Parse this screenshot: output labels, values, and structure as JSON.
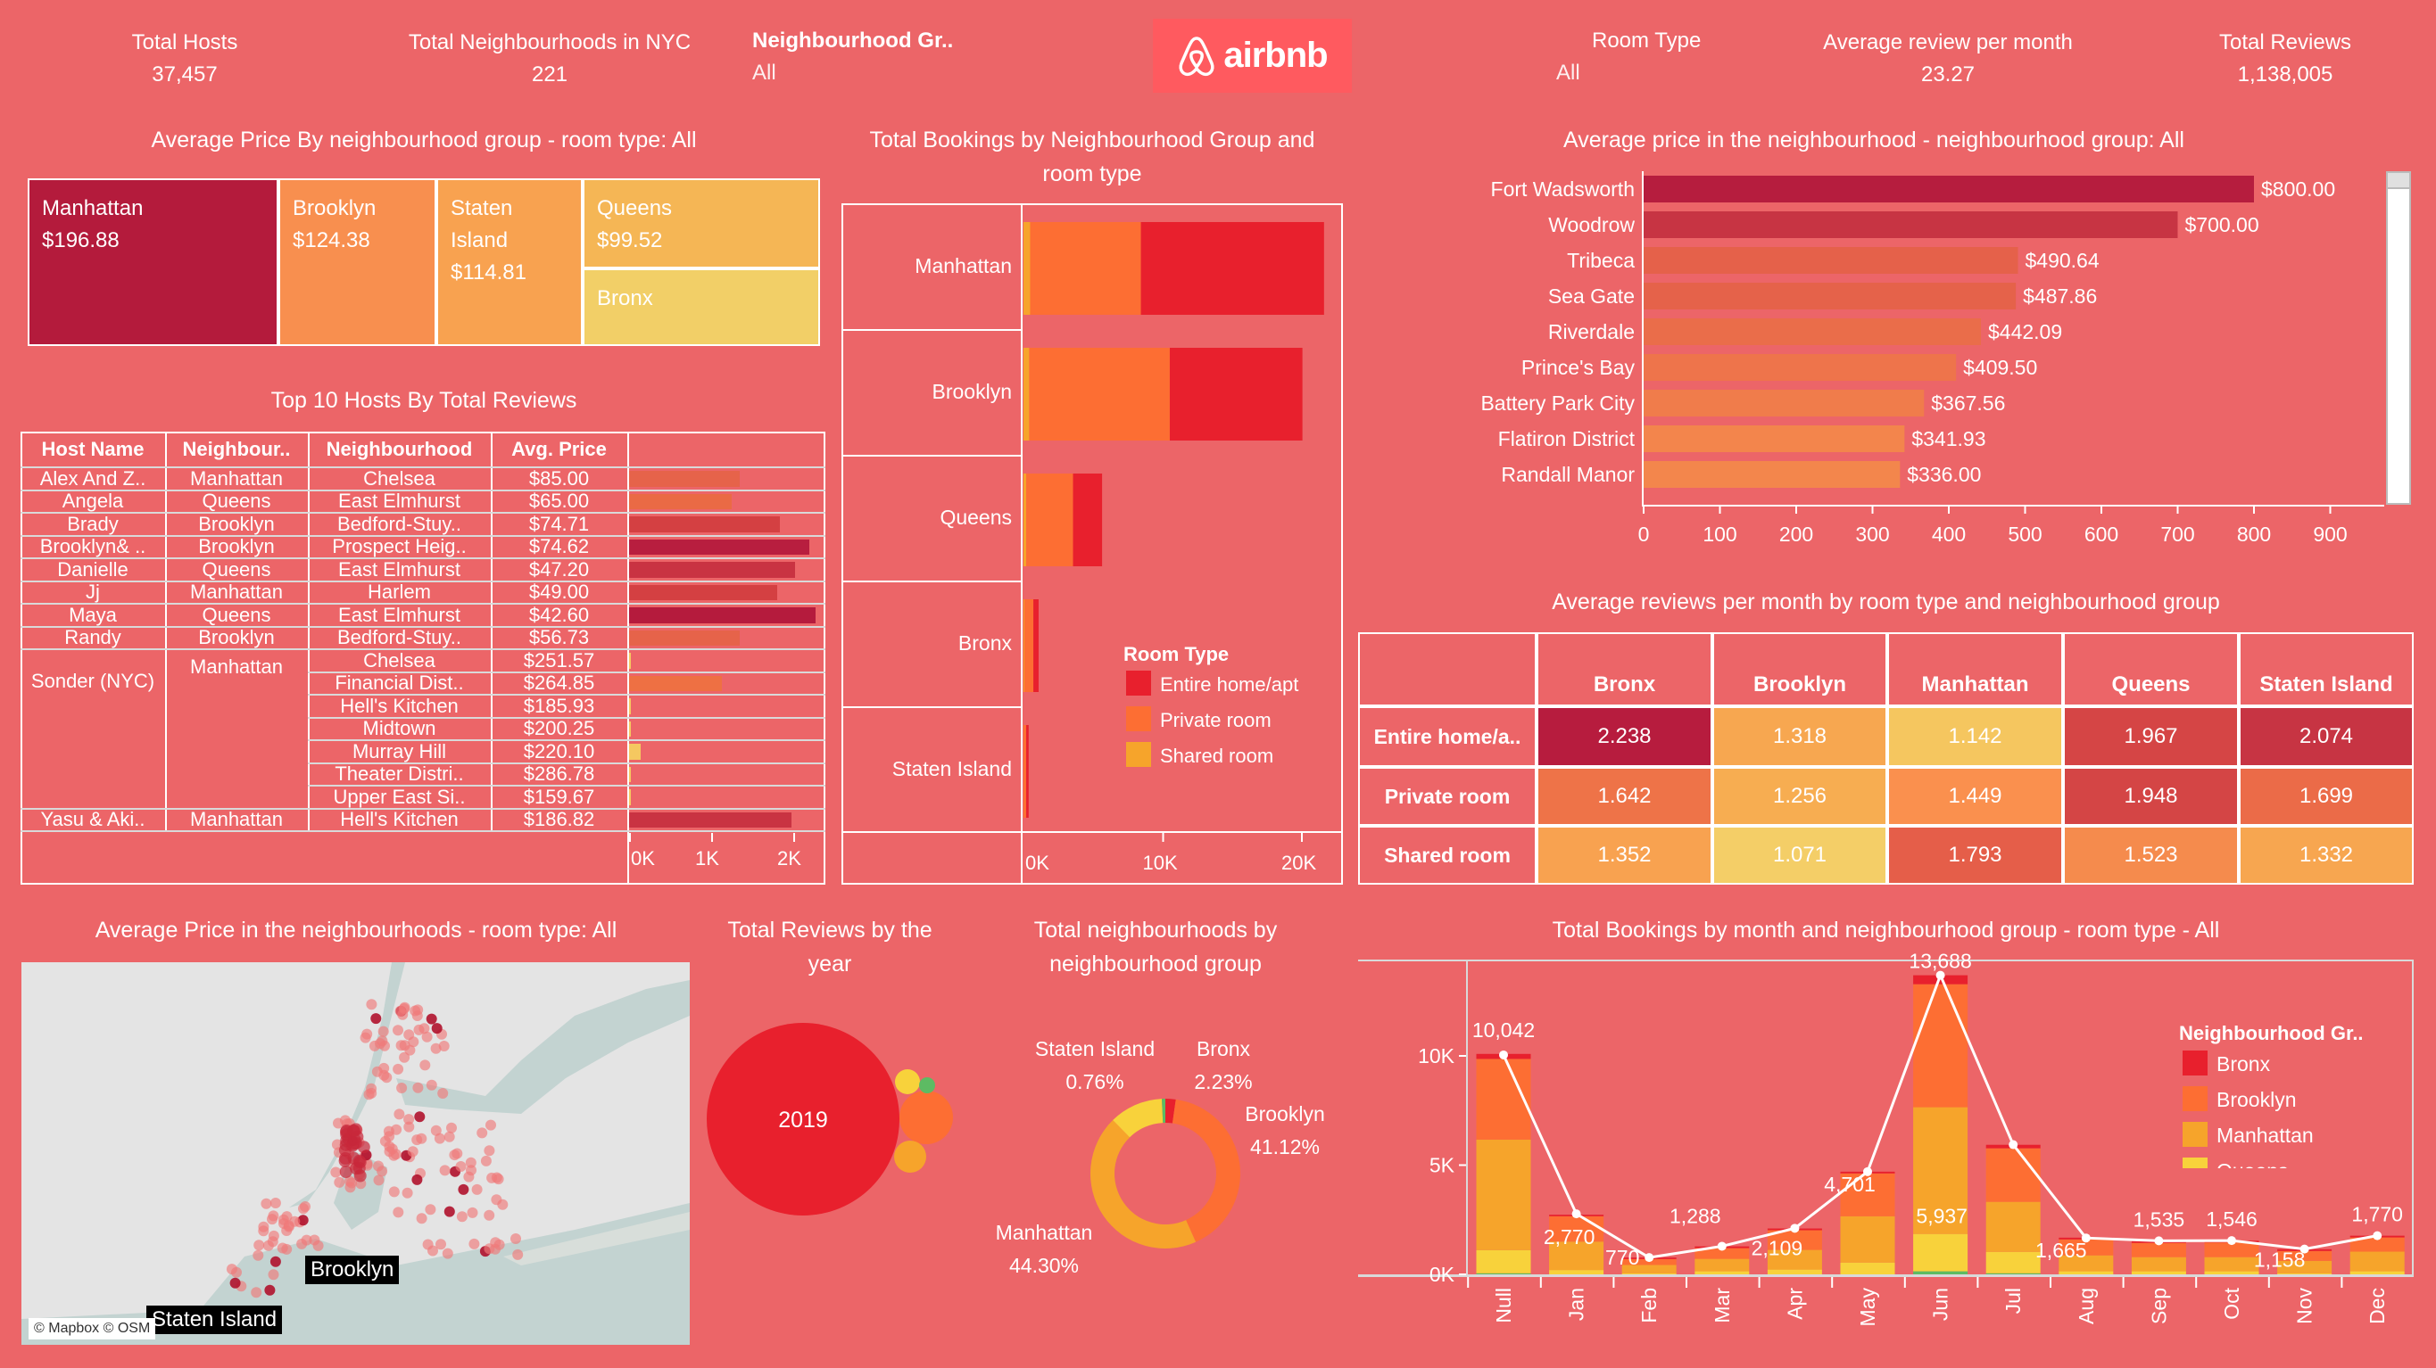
{
  "header": {
    "total_hosts_label": "Total Hosts",
    "total_hosts_value": "37,457",
    "total_neighbourhoods_label": "Total Neighbourhoods in NYC",
    "total_neighbourhoods_value": "221",
    "neighbourhood_group_filter_label": "Neighbourhood Gr..",
    "neighbourhood_group_filter_value": "All",
    "logo_text": "airbnb",
    "room_type_filter_label": "Room Type",
    "room_type_filter_value": "All",
    "avg_review_label": "Average review per month",
    "avg_review_value": "23.27",
    "total_reviews_label": "Total Reviews",
    "total_reviews_value": "1,138,005"
  },
  "colors": {
    "background": "#EC6568",
    "entire_home": "#E8202D",
    "private_room": "#FD6E33",
    "shared_room": "#F6A42B",
    "bronx": "#E8202D",
    "brooklyn": "#FD6E33",
    "manhattan": "#F6A42B",
    "queens": "#F8D23B",
    "staten_island": "#5DBB63"
  },
  "treemap": {
    "title": "Average Price By neighbourhood group - room type: All",
    "cells": [
      {
        "name": "Manhattan",
        "value": "$196.88",
        "color": "#B41B3C"
      },
      {
        "name": "Brooklyn",
        "value": "$124.38",
        "color": "#F88F4F"
      },
      {
        "name": "Staten Island",
        "value": "$114.81",
        "color": "#F8A250"
      },
      {
        "name": "Queens",
        "value": "$99.52",
        "color": "#F5B655"
      },
      {
        "name": "Bronx",
        "value": "",
        "color": "#F2CF67"
      }
    ]
  },
  "hosts": {
    "title": "Top 10 Hosts By Total Reviews",
    "columns": [
      "Host Name",
      "Neighbour..",
      "Neighbourhood",
      "Avg. Price"
    ],
    "axis_ticks": [
      "0K",
      "1K",
      "2K"
    ],
    "rows": [
      {
        "host": "Alex And Z..",
        "group": "Manhattan",
        "items": [
          {
            "neighbourhood": "Chelsea",
            "price": "$85.00",
            "reviews_k": 1.35,
            "color": "#E6634A"
          }
        ]
      },
      {
        "host": "Angela",
        "group": "Queens",
        "items": [
          {
            "neighbourhood": "East Elmhurst",
            "price": "$65.00",
            "reviews_k": 1.25,
            "color": "#EA6A45"
          }
        ]
      },
      {
        "host": "Brady",
        "group": "Brooklyn",
        "items": [
          {
            "neighbourhood": "Bedford-Stuy..",
            "price": "$74.71",
            "reviews_k": 1.84,
            "color": "#D44042"
          }
        ]
      },
      {
        "host": "Brooklyn& ..",
        "group": "Brooklyn",
        "items": [
          {
            "neighbourhood": "Prospect Heig..",
            "price": "$74.62",
            "reviews_k": 2.2,
            "color": "#B81E3F"
          }
        ]
      },
      {
        "host": "Danielle",
        "group": "Queens",
        "items": [
          {
            "neighbourhood": "East Elmhurst",
            "price": "$47.20",
            "reviews_k": 2.02,
            "color": "#C93342"
          }
        ]
      },
      {
        "host": "Jj",
        "group": "Manhattan",
        "items": [
          {
            "neighbourhood": "Harlem",
            "price": "$49.00",
            "reviews_k": 1.8,
            "color": "#D44042"
          }
        ]
      },
      {
        "host": "Maya",
        "group": "Queens",
        "items": [
          {
            "neighbourhood": "East Elmhurst",
            "price": "$42.60",
            "reviews_k": 2.27,
            "color": "#B51B3D"
          }
        ]
      },
      {
        "host": "Randy",
        "group": "Brooklyn",
        "items": [
          {
            "neighbourhood": "Bedford-Stuy..",
            "price": "$56.73",
            "reviews_k": 1.35,
            "color": "#E6634A"
          }
        ]
      },
      {
        "host": "Sonder (NYC)",
        "group": "Manhattan",
        "items": [
          {
            "neighbourhood": "Chelsea",
            "price": "$251.57",
            "reviews_k": 0.01,
            "color": "#F5C860"
          },
          {
            "neighbourhood": "Financial Dist..",
            "price": "$264.85",
            "reviews_k": 1.13,
            "color": "#EE7043"
          },
          {
            "neighbourhood": "Hell's Kitchen",
            "price": "$185.93",
            "reviews_k": 0.01,
            "color": "#F5C860"
          },
          {
            "neighbourhood": "Midtown",
            "price": "$200.25",
            "reviews_k": 0.01,
            "color": "#F5C860"
          },
          {
            "neighbourhood": "Murray Hill",
            "price": "$220.10",
            "reviews_k": 0.14,
            "color": "#F5C860"
          },
          {
            "neighbourhood": "Theater Distri..",
            "price": "$286.78",
            "reviews_k": 0.01,
            "color": "#F5C860"
          },
          {
            "neighbourhood": "Upper East Si..",
            "price": "$159.67",
            "reviews_k": 0.01,
            "color": "#F5C860"
          }
        ]
      },
      {
        "host": "Yasu & Aki..",
        "group": "Manhattan",
        "items": [
          {
            "neighbourhood": "Hell's Kitchen",
            "price": "$186.82",
            "reviews_k": 1.98,
            "color": "#C93342"
          }
        ]
      }
    ]
  },
  "bookings": {
    "title": "Total Bookings by Neighbourhood Group and room type",
    "legend_title": "Room Type",
    "room_types": [
      "Shared room",
      "Private room",
      "Entire home/apt"
    ],
    "legend_order": [
      "Entire home/apt",
      "Private room",
      "Shared room"
    ],
    "axis_ticks": [
      "0K",
      "10K",
      "20K"
    ],
    "groups": [
      {
        "name": "Manhattan",
        "values": [
          480,
          7982,
          13199
        ]
      },
      {
        "name": "Brooklyn",
        "values": [
          413,
          10132,
          9559
        ]
      },
      {
        "name": "Queens",
        "values": [
          198,
          3372,
          2096
        ]
      },
      {
        "name": "Bronx",
        "values": [
          60,
          652,
          379
        ]
      },
      {
        "name": "Staten Island",
        "values": [
          9,
          188,
          176
        ]
      }
    ]
  },
  "top_neighbourhoods": {
    "title": "Average price in the neighbourhood - neighbourhood group: All",
    "axis_ticks": [
      0,
      100,
      200,
      300,
      400,
      500,
      600,
      700,
      800,
      900
    ],
    "rows": [
      {
        "name": "Fort Wadsworth",
        "value": 800.0,
        "label": "$800.00",
        "color": "#B61D3E"
      },
      {
        "name": "Woodrow",
        "value": 700.0,
        "label": "$700.00",
        "color": "#C73443"
      },
      {
        "name": "Tribeca",
        "value": 490.64,
        "label": "$490.64",
        "color": "#E5614A"
      },
      {
        "name": "Sea Gate",
        "value": 487.86,
        "label": "$487.86",
        "color": "#E5624A"
      },
      {
        "name": "Riverdale",
        "value": 442.09,
        "label": "$442.09",
        "color": "#EA6D4A"
      },
      {
        "name": "Prince's Bay",
        "value": 409.5,
        "label": "$409.50",
        "color": "#EE744B"
      },
      {
        "name": "Battery Park City",
        "value": 367.56,
        "label": "$367.56",
        "color": "#F07C4B"
      },
      {
        "name": "Flatiron District",
        "value": 341.93,
        "label": "$341.93",
        "color": "#F3854C"
      },
      {
        "name": "Randall Manor",
        "value": 336.0,
        "label": "$336.00",
        "color": "#F3864C"
      }
    ]
  },
  "heatmap": {
    "title": "Average reviews per month by room type and neighbourhood group",
    "columns": [
      "Bronx",
      "Brooklyn",
      "Manhattan",
      "Queens",
      "Staten Island"
    ],
    "rows": [
      {
        "label": "Entire home/a..",
        "values": [
          "2.238",
          "1.318",
          "1.142",
          "1.967",
          "2.074"
        ],
        "colors": [
          "#B71C3E",
          "#F7A750",
          "#F5C65F",
          "#D54545",
          "#C73443"
        ]
      },
      {
        "label": "Private room",
        "values": [
          "1.642",
          "1.256",
          "1.449",
          "1.948",
          "1.699"
        ],
        "colors": [
          "#EE7348",
          "#F7AD51",
          "#FA904E",
          "#D44545",
          "#EB6B48"
        ]
      },
      {
        "label": "Shared room",
        "values": [
          "1.352",
          "1.071",
          "1.793",
          "1.523",
          "1.332"
        ],
        "colors": [
          "#F8A250",
          "#F4CE67",
          "#E55E49",
          "#F58B4D",
          "#F7A650"
        ]
      }
    ]
  },
  "map": {
    "title": "Average Price in the neighbourhoods - room type: All",
    "labels": [
      "Brooklyn",
      "Staten Island"
    ],
    "attribution": "© Mapbox © OSM"
  },
  "reviews_by_year": {
    "title": "Total Reviews by the year",
    "bubble_label": "2019"
  },
  "neighbourhoods_donut": {
    "title": "Total neighbourhoods by neighbourhood group",
    "slices": [
      {
        "name": "Bronx",
        "pct": 2.23,
        "label": "2.23%",
        "color": "#E8202D"
      },
      {
        "name": "Brooklyn",
        "pct": 41.12,
        "label": "41.12%",
        "color": "#FD6E33"
      },
      {
        "name": "Manhattan",
        "pct": 44.3,
        "label": "44.30%",
        "color": "#F6A42B"
      },
      {
        "name": "Queens",
        "pct": 11.59,
        "label": "",
        "color": "#F8D23B"
      },
      {
        "name": "Staten Island",
        "pct": 0.76,
        "label": "0.76%",
        "color": "#5DBB63"
      }
    ]
  },
  "monthly": {
    "title": "Total Bookings by month and neighbourhood group - room type - All",
    "legend_title": "Neighbourhood Gr..",
    "legend_items": [
      "Bronx",
      "Brooklyn",
      "Manhattan",
      "Queens"
    ],
    "y_ticks": [
      "0K",
      "5K",
      "10K"
    ],
    "months": [
      "Null",
      "Jan",
      "Feb",
      "Mar",
      "Apr",
      "May",
      "Jun",
      "Jul",
      "Aug",
      "Sep",
      "Oct",
      "Nov",
      "Dec"
    ],
    "totals": [
      10042,
      2770,
      770,
      1288,
      2109,
      4701,
      13688,
      5937,
      1665,
      1535,
      1546,
      1158,
      1770
    ],
    "total_labels": [
      "10,042",
      "2,770",
      "770",
      "1,288",
      "2,109",
      "4,701",
      "13,688",
      "5,937",
      "1,665",
      "1,535",
      "1,546",
      "1,158",
      "1,770"
    ],
    "series": [
      {
        "name": "Staten Island",
        "color": "#5DBB63",
        "values": [
          50,
          0,
          0,
          0,
          0,
          0,
          140,
          50,
          0,
          0,
          0,
          0,
          0
        ]
      },
      {
        "name": "Queens",
        "color": "#F8D23B",
        "values": [
          1060,
          200,
          50,
          140,
          220,
          540,
          1710,
          980,
          140,
          140,
          140,
          50,
          140
        ]
      },
      {
        "name": "Manhattan",
        "color": "#F6A42B",
        "values": [
          5060,
          1300,
          380,
          570,
          900,
          2120,
          5800,
          2290,
          730,
          650,
          650,
          570,
          900
        ]
      },
      {
        "name": "Brooklyn",
        "color": "#FD6E33",
        "values": [
          3690,
          1160,
          270,
          490,
          900,
          1960,
          5630,
          2450,
          730,
          650,
          670,
          450,
          650
        ]
      },
      {
        "name": "Bronx",
        "color": "#E8202D",
        "values": [
          230,
          70,
          70,
          80,
          80,
          80,
          410,
          160,
          80,
          80,
          80,
          80,
          80
        ]
      }
    ]
  }
}
